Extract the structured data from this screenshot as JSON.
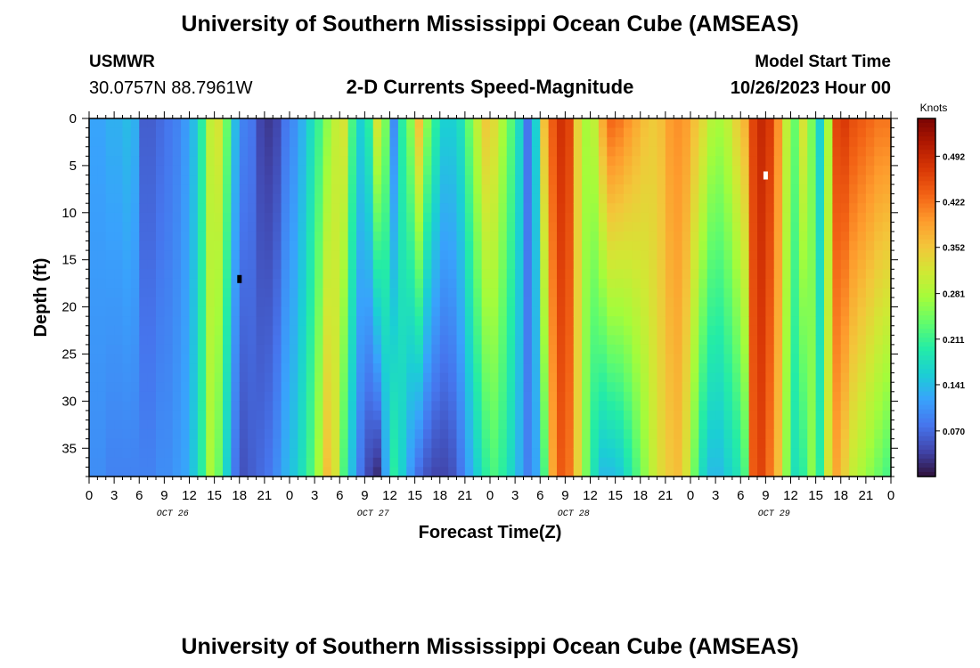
{
  "header": {
    "title": "University of Southern Mississippi Ocean Cube (AMSEAS)",
    "station": "USMWR",
    "location": "30.0757N  88.7961W",
    "subtitle": "2-D Currents Speed-Magnitude",
    "start_label": "Model Start Time",
    "start_value": "10/26/2023 Hour 00"
  },
  "footer": {
    "title": "University of Southern Mississippi Ocean Cube (AMSEAS)"
  },
  "colors": {
    "scale": [
      "#30123b",
      "#4145ab",
      "#4675ed",
      "#39a2fc",
      "#1bcfd4",
      "#24eca6",
      "#61fc6c",
      "#a4fc3b",
      "#d1e834",
      "#f3c63a",
      "#fe9b2d",
      "#f36315",
      "#d93806",
      "#b11901",
      "#7a0403"
    ]
  },
  "chart_data": {
    "type": "heatmap",
    "title": "2-D Currents Speed-Magnitude",
    "xlabel": "Forecast Time(Z)",
    "ylabel": "Depth (ft)",
    "x_hours": [
      0,
      96
    ],
    "xticks": [
      "0",
      "3",
      "6",
      "9",
      "12",
      "15",
      "18",
      "21",
      "0",
      "3",
      "6",
      "9",
      "12",
      "15",
      "18",
      "21",
      "0",
      "3",
      "6",
      "9",
      "12",
      "15",
      "18",
      "21",
      "0",
      "3",
      "6",
      "9",
      "12",
      "15",
      "18",
      "21",
      "0"
    ],
    "date_labels": [
      {
        "hour": 10,
        "label": "OCT 26"
      },
      {
        "hour": 34,
        "label": "OCT 27"
      },
      {
        "hour": 58,
        "label": "OCT 28"
      },
      {
        "hour": 82,
        "label": "OCT 29"
      }
    ],
    "yticks": [
      0,
      5,
      10,
      15,
      20,
      25,
      30,
      35
    ],
    "ylim": [
      0,
      38
    ],
    "colorbar": {
      "unit": "Knots",
      "ticks": [
        "0.492",
        "0.422",
        "0.352",
        "0.281",
        "0.211",
        "0.141",
        "0.070"
      ],
      "tick_values": [
        0.492,
        0.422,
        0.352,
        0.281,
        0.211,
        0.141,
        0.07
      ],
      "range": [
        0.0,
        0.55
      ]
    },
    "surface_speed": [
      0.12,
      0.12,
      0.13,
      0.13,
      0.14,
      0.13,
      0.06,
      0.06,
      0.07,
      0.08,
      0.09,
      0.11,
      0.14,
      0.2,
      0.3,
      0.32,
      0.24,
      0.14,
      0.09,
      0.08,
      0.04,
      0.03,
      0.04,
      0.08,
      0.1,
      0.13,
      0.17,
      0.21,
      0.26,
      0.3,
      0.32,
      0.22,
      0.16,
      0.2,
      0.32,
      0.25,
      0.1,
      0.2,
      0.26,
      0.36,
      0.26,
      0.2,
      0.16,
      0.16,
      0.18,
      0.24,
      0.3,
      0.35,
      0.33,
      0.28,
      0.23,
      0.17,
      0.08,
      0.16,
      0.36,
      0.44,
      0.48,
      0.46,
      0.34,
      0.28,
      0.3,
      0.38,
      0.43,
      0.42,
      0.4,
      0.38,
      0.36,
      0.35,
      0.36,
      0.39,
      0.4,
      0.39,
      0.36,
      0.33,
      0.29,
      0.28,
      0.3,
      0.34,
      0.37,
      0.46,
      0.49,
      0.47,
      0.4,
      0.3,
      0.24,
      0.32,
      0.25,
      0.16,
      0.28,
      0.46,
      0.47,
      0.45,
      0.44,
      0.43,
      0.42,
      0.42
    ],
    "bottom_speed": [
      0.1,
      0.1,
      0.09,
      0.09,
      0.09,
      0.09,
      0.09,
      0.09,
      0.1,
      0.1,
      0.11,
      0.12,
      0.15,
      0.2,
      0.28,
      0.24,
      0.16,
      0.08,
      0.05,
      0.06,
      0.07,
      0.08,
      0.1,
      0.13,
      0.15,
      0.18,
      0.22,
      0.28,
      0.36,
      0.32,
      0.22,
      0.14,
      0.08,
      0.04,
      0.02,
      0.12,
      0.2,
      0.16,
      0.11,
      0.07,
      0.05,
      0.04,
      0.04,
      0.05,
      0.08,
      0.12,
      0.16,
      0.2,
      0.22,
      0.2,
      0.17,
      0.13,
      0.09,
      0.12,
      0.22,
      0.38,
      0.44,
      0.42,
      0.34,
      0.25,
      0.18,
      0.14,
      0.14,
      0.15,
      0.18,
      0.22,
      0.26,
      0.3,
      0.33,
      0.35,
      0.36,
      0.32,
      0.24,
      0.17,
      0.14,
      0.14,
      0.16,
      0.18,
      0.22,
      0.44,
      0.46,
      0.42,
      0.36,
      0.26,
      0.18,
      0.2,
      0.26,
      0.2,
      0.32,
      0.38,
      0.34,
      0.3,
      0.28,
      0.26,
      0.24,
      0.22
    ],
    "missing_cells": [
      {
        "hour": 18,
        "depth": 17,
        "color": "#000000"
      },
      {
        "hour": 81,
        "depth": 6,
        "color": "#ffffff"
      }
    ]
  }
}
